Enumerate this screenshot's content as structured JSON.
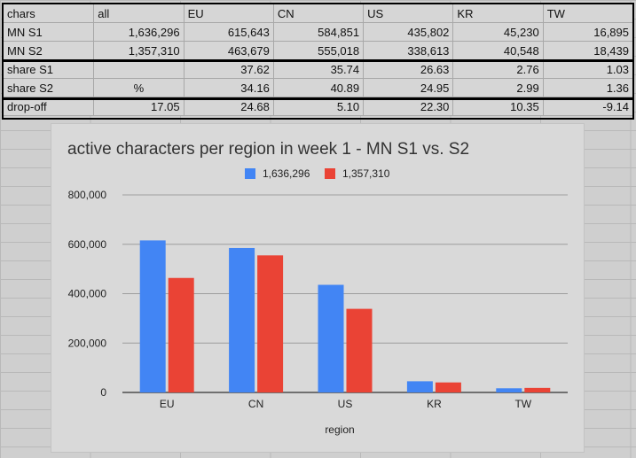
{
  "sheet": {
    "header": [
      "chars",
      "all",
      "EU",
      "CN",
      "US",
      "KR",
      "TW"
    ],
    "rows": [
      [
        "MN S1",
        "1,636,296",
        "615,643",
        "584,851",
        "435,802",
        "45,230",
        "16,895"
      ],
      [
        "MN S2",
        "1,357,310",
        "463,679",
        "555,018",
        "338,613",
        "40,548",
        "18,439"
      ],
      [
        "share S1",
        "",
        "37.62",
        "35.74",
        "26.63",
        "2.76",
        "1.03"
      ],
      [
        "share S2",
        "%",
        "34.16",
        "40.89",
        "24.95",
        "2.99",
        "1.36"
      ],
      [
        "drop-off",
        "17.05",
        "24.68",
        "5.10",
        "22.30",
        "10.35",
        "-9.14"
      ]
    ]
  },
  "chart_data": {
    "type": "bar",
    "title": "active characters per region in week 1 - MN S1 vs. S2",
    "xlabel": "region",
    "ylabel": "",
    "categories": [
      "EU",
      "CN",
      "US",
      "KR",
      "TW"
    ],
    "series": [
      {
        "name": "1,636,296",
        "color": "#4285f4",
        "values": [
          615643,
          584851,
          435802,
          45230,
          16895
        ]
      },
      {
        "name": "1,357,310",
        "color": "#ea4335",
        "values": [
          463679,
          555018,
          338613,
          40548,
          18439
        ]
      }
    ],
    "ylim": [
      0,
      800000
    ],
    "yticks": [
      0,
      200000,
      400000,
      600000,
      800000
    ],
    "ytick_labels": [
      "0",
      "200,000",
      "400,000",
      "600,000",
      "800,000"
    ],
    "grid": true,
    "legend": "top-center"
  }
}
